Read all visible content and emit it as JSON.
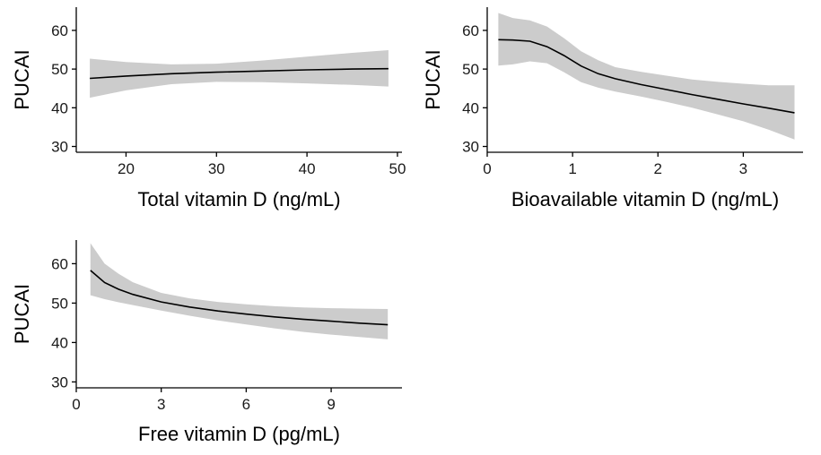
{
  "chart_data": [
    {
      "type": "line",
      "panel": "top-left",
      "xlabel": "Total vitamin D (ng/mL)",
      "ylabel": "PUCAI",
      "xlim": [
        14.5,
        50.5
      ],
      "ylim": [
        28.5,
        66
      ],
      "xticks": [
        20,
        30,
        40,
        50
      ],
      "yticks": [
        30,
        40,
        50,
        60
      ],
      "series": [
        {
          "name": "fit",
          "x": [
            16,
            20,
            25,
            30,
            35,
            40,
            45,
            49
          ],
          "y": [
            47.6,
            48.2,
            48.8,
            49.2,
            49.5,
            49.8,
            50.0,
            50.1
          ]
        }
      ],
      "ci_lower": [
        42.6,
        44.5,
        46.1,
        46.7,
        46.6,
        46.3,
        45.9,
        45.5
      ],
      "ci_upper": [
        52.7,
        51.8,
        51.2,
        51.4,
        52.2,
        53.2,
        54.2,
        54.9
      ]
    },
    {
      "type": "line",
      "panel": "top-right",
      "xlabel": "Bioavailable vitamin D (ng/mL)",
      "ylabel": "PUCAI",
      "xlim": [
        0,
        3.7
      ],
      "ylim": [
        28.5,
        66
      ],
      "xticks": [
        0,
        1,
        2,
        3
      ],
      "yticks": [
        30,
        40,
        50,
        60
      ],
      "series": [
        {
          "name": "fit",
          "x": [
            0.13,
            0.3,
            0.5,
            0.7,
            0.9,
            1.1,
            1.3,
            1.5,
            1.8,
            2.1,
            2.4,
            2.7,
            3.0,
            3.3,
            3.6
          ],
          "y": [
            57.6,
            57.5,
            57.2,
            55.8,
            53.5,
            50.8,
            48.8,
            47.5,
            46.0,
            44.7,
            43.4,
            42.2,
            41.0,
            39.9,
            38.7
          ]
        }
      ],
      "ci_lower": [
        50.9,
        51.2,
        52.0,
        51.5,
        49.2,
        46.6,
        45.2,
        44.2,
        42.9,
        41.5,
        40.0,
        38.3,
        36.5,
        34.3,
        31.8
      ],
      "ci_upper": [
        64.5,
        63.2,
        62.6,
        61.0,
        58.0,
        54.6,
        52.3,
        50.5,
        49.3,
        48.3,
        47.3,
        46.7,
        46.2,
        45.8,
        45.8
      ]
    },
    {
      "type": "line",
      "panel": "bottom-left",
      "xlabel": "Free vitamin D (pg/mL)",
      "ylabel": "PUCAI",
      "xlim": [
        0,
        11.5
      ],
      "ylim": [
        28.5,
        66
      ],
      "xticks": [
        0,
        3,
        6,
        9
      ],
      "yticks": [
        30,
        40,
        50,
        60
      ],
      "series": [
        {
          "name": "fit",
          "x": [
            0.5,
            1,
            1.5,
            2,
            3,
            4,
            5,
            6,
            7,
            8,
            9,
            10,
            11
          ],
          "y": [
            58.3,
            55.2,
            53.5,
            52.2,
            50.3,
            49.0,
            48.0,
            47.2,
            46.5,
            45.9,
            45.4,
            44.9,
            44.5
          ]
        }
      ],
      "ci_lower": [
        52.0,
        51.0,
        50.2,
        49.5,
        48.1,
        46.8,
        45.6,
        44.6,
        43.6,
        42.7,
        42.0,
        41.4,
        40.8
      ],
      "ci_upper": [
        65.2,
        60.0,
        57.4,
        55.3,
        52.6,
        51.2,
        50.3,
        49.7,
        49.2,
        48.9,
        48.7,
        48.6,
        48.5
      ]
    }
  ]
}
